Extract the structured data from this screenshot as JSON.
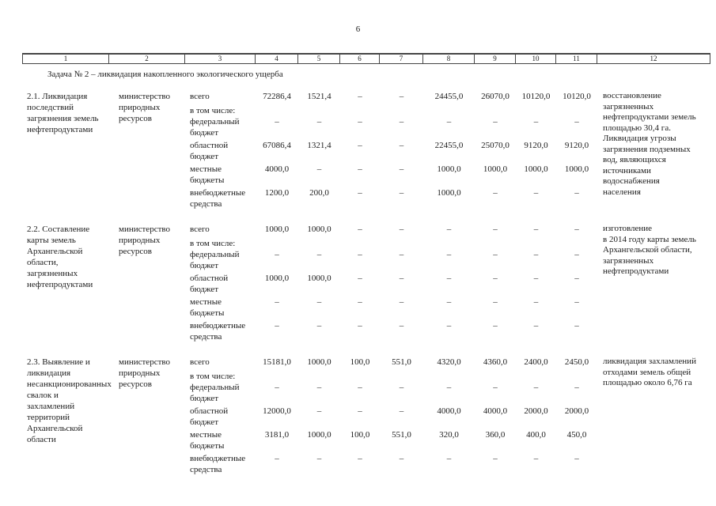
{
  "page": {
    "number": "6"
  },
  "table": {
    "column_numbers": [
      "1",
      "2",
      "3",
      "4",
      "5",
      "6",
      "7",
      "8",
      "9",
      "10",
      "11",
      "12"
    ],
    "section_title": "Задача № 2 – ликвидация накопленного экологического ущерба",
    "budget_labels": [
      "всего",
      "в том числе:",
      "федеральный бюджет",
      "областной бюджет",
      "местные бюджеты",
      "внебюджетные средства"
    ],
    "rows": [
      {
        "name": "2.1. Ликвидация последствий загрязнения земель нефтепродуктами",
        "executor": "министерство природных ресурсов",
        "values": {
          "vsego": [
            "72286,4",
            "1521,4",
            "–",
            "–",
            "24455,0",
            "26070,0",
            "10120,0",
            "10120,0"
          ],
          "federal": [
            "–",
            "–",
            "–",
            "–",
            "–",
            "–",
            "–",
            "–"
          ],
          "oblast": [
            "67086,4",
            "1321,4",
            "–",
            "–",
            "22455,0",
            "25070,0",
            "9120,0",
            "9120,0"
          ],
          "local": [
            "4000,0",
            "–",
            "–",
            "–",
            "1000,0",
            "1000,0",
            "1000,0",
            "1000,0"
          ],
          "extra": [
            "1200,0",
            "200,0",
            "–",
            "–",
            "1000,0",
            "–",
            "–",
            "–"
          ]
        },
        "result": "восстановление загрязненных нефтепродуктами земель площадью 30,4 га.\nЛиквидация угрозы загрязнения подземных вод, являющихся источниками водоснабжения населения"
      },
      {
        "name": "2.2. Составление карты земель Архангельской области, загрязненных нефтепродуктами",
        "executor": "министерство природных ресурсов",
        "values": {
          "vsego": [
            "1000,0",
            "1000,0",
            "–",
            "–",
            "–",
            "–",
            "–",
            "–"
          ],
          "federal": [
            "–",
            "–",
            "–",
            "–",
            "–",
            "–",
            "–",
            "–"
          ],
          "oblast": [
            "1000,0",
            "1000,0",
            "–",
            "–",
            "–",
            "–",
            "–",
            "–"
          ],
          "local": [
            "–",
            "–",
            "–",
            "–",
            "–",
            "–",
            "–",
            "–"
          ],
          "extra": [
            "–",
            "–",
            "–",
            "–",
            "–",
            "–",
            "–",
            "–"
          ]
        },
        "result": "изготовление\nв 2014 году карты земель Архангельской области, загрязненных нефтепродуктами"
      },
      {
        "name": "2.3. Выявление и ликвидация несанкционированных свалок и захламлений территорий Архангельской области",
        "executor": "министерство природных ресурсов",
        "values": {
          "vsego": [
            "15181,0",
            "1000,0",
            "100,0",
            "551,0",
            "4320,0",
            "4360,0",
            "2400,0",
            "2450,0"
          ],
          "federal": [
            "–",
            "–",
            "–",
            "–",
            "–",
            "–",
            "–",
            "–"
          ],
          "oblast": [
            "12000,0",
            "–",
            "–",
            "–",
            "4000,0",
            "4000,0",
            "2000,0",
            "2000,0"
          ],
          "local": [
            "3181,0",
            "1000,0",
            "100,0",
            "551,0",
            "320,0",
            "360,0",
            "400,0",
            "450,0"
          ],
          "extra": [
            "–",
            "–",
            "–",
            "–",
            "–",
            "–",
            "–",
            "–"
          ]
        },
        "result": "ликвидация захламлений отходами земель общей площадью около 6,76 га"
      }
    ]
  }
}
